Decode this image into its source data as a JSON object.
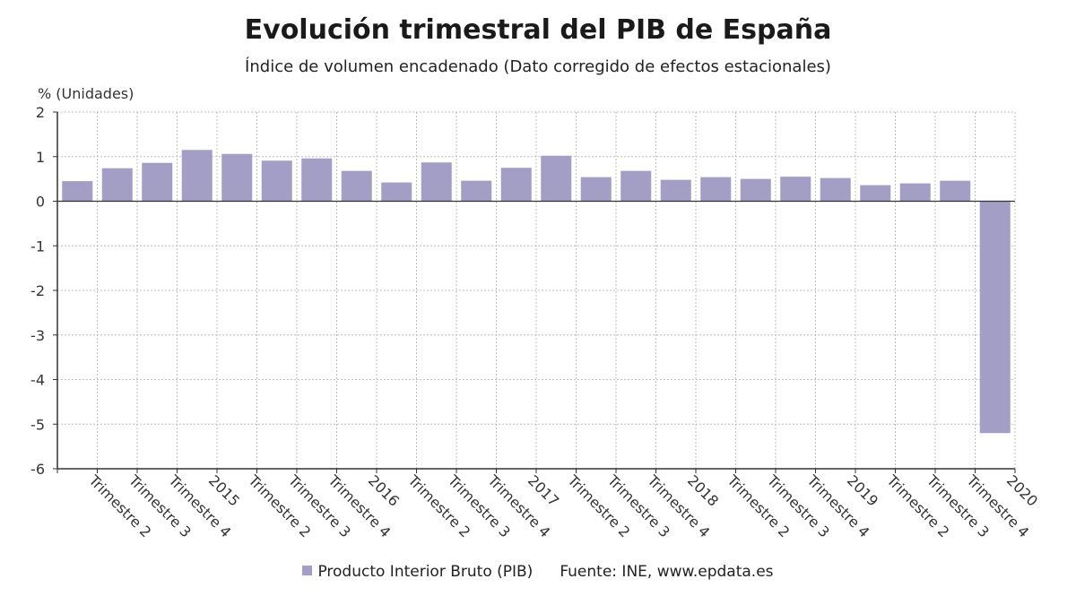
{
  "chart_data": {
    "type": "bar",
    "title": "Evolución trimestral del PIB de España",
    "subtitle": "Índice de volumen encadenado (Dato corregido de efectos estacionales)",
    "ylabel": "% (Unidades)",
    "ylim": [
      -6,
      2
    ],
    "yticks": [
      2,
      1,
      0,
      -1,
      -2,
      -3,
      -4,
      -5,
      -6
    ],
    "grid": true,
    "bar_color": "#a29ec6",
    "categories": [
      "Trimestre 2",
      "Trimestre 3",
      "Trimestre 4",
      "2015",
      "Trimestre 2",
      "Trimestre 3",
      "Trimestre 4",
      "2016",
      "Trimestre 2",
      "Trimestre 3",
      "Trimestre 4",
      "2017",
      "Trimestre 2",
      "Trimestre 3",
      "Trimestre 4",
      "2018",
      "Trimestre 2",
      "Trimestre 3",
      "Trimestre 4",
      "2019",
      "Trimestre 2",
      "Trimestre 3",
      "Trimestre 4",
      "2020"
    ],
    "series": [
      {
        "name": "Producto Interior Bruto (PIB)",
        "values": [
          0.45,
          0.74,
          0.86,
          1.15,
          1.06,
          0.91,
          0.96,
          0.68,
          0.42,
          0.87,
          0.46,
          0.75,
          1.02,
          0.54,
          0.68,
          0.48,
          0.54,
          0.5,
          0.55,
          0.52,
          0.36,
          0.4,
          0.46,
          -5.2
        ]
      }
    ],
    "legend_position": "bottom"
  },
  "legend": {
    "series_label": "Producto Interior Bruto (PIB)",
    "source": "Fuente: INE, www.epdata.es"
  }
}
